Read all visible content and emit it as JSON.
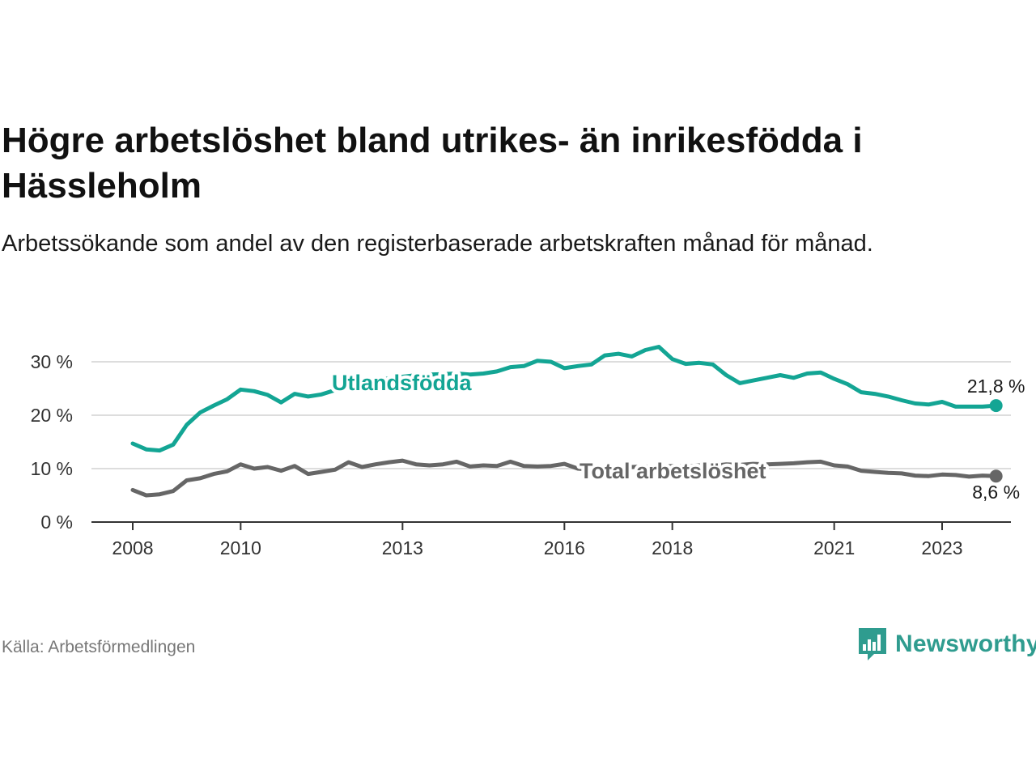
{
  "header": {
    "title": "Högre arbetslöshet bland utrikes- än inrikesfödda i Hässleholm",
    "subtitle": "Arbetssökande som andel av den registerbaserade arbetskraften månad för månad."
  },
  "footer": {
    "source": "Källa: Arbetsförmedlingen",
    "brand": "Newsworthy"
  },
  "colors": {
    "utlandsfodda": "#13a594",
    "total": "#666666",
    "grid": "#dddddd",
    "axis": "#333333",
    "brand": "#2f9c8f"
  },
  "chart_data": {
    "type": "line",
    "title": "Högre arbetslöshet bland utrikes- än inrikesfödda i Hässleholm",
    "xlabel": "",
    "ylabel": "",
    "xlim": [
      2008,
      2024.6
    ],
    "ylim": [
      0,
      30
    ],
    "y_ticks": [
      0,
      10,
      20,
      30
    ],
    "y_tick_labels": [
      "0 %",
      "10 %",
      "20 %",
      "30 %"
    ],
    "x_ticks": [
      2008,
      2010,
      2013,
      2016,
      2018,
      2021,
      2023
    ],
    "x_tick_labels": [
      "2008",
      "2010",
      "2013",
      "2016",
      "2018",
      "2021",
      "2023"
    ],
    "grid": true,
    "series": [
      {
        "name": "Utlandsfödda",
        "label": "Utlandsfödda",
        "end_label": "21,8 %",
        "x": [
          2008.0,
          2008.25,
          2008.5,
          2008.75,
          2009.0,
          2009.25,
          2009.5,
          2009.75,
          2010.0,
          2010.25,
          2010.5,
          2010.75,
          2011.0,
          2011.25,
          2011.5,
          2011.75,
          2012.0,
          2012.25,
          2012.5,
          2012.75,
          2013.0,
          2013.25,
          2013.5,
          2013.75,
          2014.0,
          2014.25,
          2014.5,
          2014.75,
          2015.0,
          2015.25,
          2015.5,
          2015.75,
          2016.0,
          2016.25,
          2016.5,
          2016.75,
          2017.0,
          2017.25,
          2017.5,
          2017.75,
          2018.0,
          2018.25,
          2018.5,
          2018.75,
          2019.0,
          2019.25,
          2019.5,
          2019.75,
          2020.0,
          2020.25,
          2020.5,
          2020.75,
          2021.0,
          2021.25,
          2021.5,
          2021.75,
          2022.0,
          2022.25,
          2022.5,
          2022.75,
          2023.0,
          2023.25,
          2023.5,
          2023.75,
          2024.0
        ],
        "values": [
          14.7,
          13.6,
          13.4,
          14.5,
          18.2,
          20.5,
          21.8,
          23.0,
          24.8,
          24.5,
          23.8,
          22.4,
          24.0,
          23.5,
          23.9,
          24.7,
          25.4,
          26.0,
          26.5,
          26.9,
          27.2,
          27.5,
          27.6,
          27.7,
          27.8,
          27.6,
          27.8,
          28.2,
          29.0,
          29.2,
          30.2,
          30.0,
          28.8,
          29.2,
          29.5,
          31.2,
          31.5,
          31.0,
          32.2,
          32.8,
          30.5,
          29.6,
          29.8,
          29.5,
          27.5,
          26.0,
          26.5,
          27.0,
          27.5,
          27.0,
          27.8,
          28.0,
          26.8,
          25.8,
          24.3,
          24.0,
          23.5,
          22.8,
          22.2,
          22.0,
          22.5,
          21.6,
          21.6,
          21.6,
          21.8
        ]
      },
      {
        "name": "Total arbetslöshet",
        "label": "Total arbetslöshet",
        "end_label": "8,6 %",
        "x": [
          2008.0,
          2008.25,
          2008.5,
          2008.75,
          2009.0,
          2009.25,
          2009.5,
          2009.75,
          2010.0,
          2010.25,
          2010.5,
          2010.75,
          2011.0,
          2011.25,
          2011.5,
          2011.75,
          2012.0,
          2012.25,
          2012.5,
          2012.75,
          2013.0,
          2013.25,
          2013.5,
          2013.75,
          2014.0,
          2014.25,
          2014.5,
          2014.75,
          2015.0,
          2015.25,
          2015.5,
          2015.75,
          2016.0,
          2016.25,
          2016.5,
          2016.75,
          2017.0,
          2017.25,
          2017.5,
          2017.75,
          2018.0,
          2018.25,
          2018.5,
          2018.75,
          2019.0,
          2019.25,
          2019.5,
          2019.75,
          2020.0,
          2020.25,
          2020.5,
          2020.75,
          2021.0,
          2021.25,
          2021.5,
          2021.75,
          2022.0,
          2022.25,
          2022.5,
          2022.75,
          2023.0,
          2023.25,
          2023.5,
          2023.75,
          2024.0
        ],
        "values": [
          6.0,
          5.0,
          5.2,
          5.8,
          7.8,
          8.2,
          9.0,
          9.5,
          10.8,
          10.0,
          10.3,
          9.6,
          10.5,
          9.0,
          9.4,
          9.8,
          11.2,
          10.3,
          10.8,
          11.2,
          11.5,
          10.8,
          10.6,
          10.8,
          11.3,
          10.4,
          10.6,
          10.5,
          11.3,
          10.5,
          10.4,
          10.5,
          10.9,
          10.0,
          9.8,
          10.0,
          10.2,
          10.3,
          10.4,
          10.3,
          10.5,
          10.4,
          10.6,
          10.5,
          10.8,
          10.7,
          10.9,
          10.8,
          10.9,
          11.0,
          11.2,
          11.3,
          10.6,
          10.4,
          9.6,
          9.4,
          9.2,
          9.1,
          8.7,
          8.6,
          8.9,
          8.8,
          8.5,
          8.7,
          8.6
        ]
      }
    ]
  }
}
